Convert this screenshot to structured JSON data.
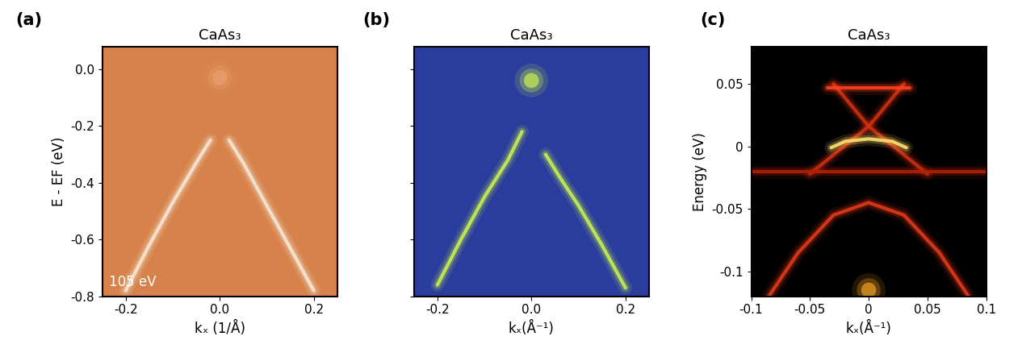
{
  "chart_data": [
    {
      "type": "line",
      "label": "(a)",
      "title": "CaAs₃",
      "annotation": "105 eV",
      "xlabel": "kₓ (1/Å)",
      "ylabel": "E - EF (eV)",
      "xlim": [
        -0.25,
        0.25
      ],
      "ylim": [
        -0.8,
        0.08
      ],
      "xticks": [
        -0.2,
        {
          "value": 0,
          "label": "0.0"
        },
        0.2
      ],
      "yticks": [
        -0.8,
        -0.6,
        -0.4,
        -0.2,
        {
          "value": 0,
          "label": "0.0"
        }
      ],
      "tick_labels": true,
      "color": "#d6824a",
      "series": [
        {
          "type": "line",
          "color": "#f7e6d4",
          "x": [
            -0.2,
            -0.15,
            -0.1,
            -0.05,
            -0.02
          ],
          "values": [
            -0.78,
            -0.62,
            -0.47,
            -0.33,
            -0.25
          ]
        },
        {
          "type": "line",
          "color": "#f7e6d4",
          "x": [
            0.02,
            0.05,
            0.1,
            0.15,
            0.2
          ],
          "values": [
            -0.25,
            -0.33,
            -0.48,
            -0.63,
            -0.78
          ]
        },
        {
          "type": "scatter",
          "color": "#e8a070",
          "x": [
            0.0
          ],
          "values": [
            -0.03
          ]
        }
      ]
    },
    {
      "type": "line",
      "label": "(b)",
      "title": "CaAs₃",
      "xlabel": "kₓ(Å⁻¹)",
      "xlim": [
        -0.25,
        0.25
      ],
      "ylim": [
        -0.8,
        0.08
      ],
      "xticks": [
        -0.2,
        {
          "value": 0,
          "label": "0.0"
        },
        0.2
      ],
      "yticks": [
        -0.8,
        -0.6,
        -0.4,
        -0.2,
        0
      ],
      "tick_labels": "x",
      "color": "#2a3d9c",
      "series": [
        {
          "type": "line",
          "color": "#c8ee50",
          "x": [
            -0.2,
            -0.15,
            -0.1,
            -0.05,
            -0.02
          ],
          "values": [
            -0.76,
            -0.6,
            -0.45,
            -0.32,
            -0.22
          ]
        },
        {
          "type": "line",
          "color": "#c8ee50",
          "x": [
            0.03,
            0.06,
            0.1,
            0.15,
            0.2
          ],
          "values": [
            -0.3,
            -0.38,
            -0.48,
            -0.62,
            -0.77
          ]
        },
        {
          "type": "scatter",
          "color": "#c8ee50",
          "x": [
            0.0
          ],
          "values": [
            -0.04
          ]
        }
      ]
    },
    {
      "type": "line",
      "label": "(c)",
      "title": "CaAs₃",
      "xlabel": "kₓ(Å⁻¹)",
      "ylabel": "Energy (eV)",
      "xlim": [
        -0.1,
        0.1
      ],
      "ylim": [
        -0.12,
        0.08
      ],
      "xticks": [
        -0.1,
        -0.05,
        0,
        0.05,
        0.1
      ],
      "yticks": [
        -0.1,
        -0.05,
        0,
        0.05
      ],
      "tick_labels": true,
      "color": "#000000",
      "series": [
        {
          "type": "line",
          "color": "#d03010",
          "x": [
            -0.03,
            0.0,
            0.05
          ],
          "values": [
            0.05,
            0.016,
            -0.022
          ]
        },
        {
          "type": "line",
          "color": "#d03010",
          "x": [
            0.03,
            0.0,
            -0.05
          ],
          "values": [
            0.05,
            0.016,
            -0.022
          ]
        },
        {
          "type": "line",
          "color": "#ff4020",
          "x": [
            -0.035,
            0.0,
            0.035
          ],
          "values": [
            0.047,
            0.047,
            0.047
          ]
        },
        {
          "type": "line",
          "color": "#ffe070",
          "x": [
            -0.032,
            -0.02,
            0.0,
            0.02,
            0.032
          ],
          "values": [
            -0.001,
            0.004,
            0.006,
            0.004,
            -0.001
          ]
        },
        {
          "type": "line",
          "color": "#b02008",
          "x": [
            -0.1,
            0.1
          ],
          "values": [
            -0.02,
            -0.02
          ]
        },
        {
          "type": "line",
          "color": "#e03818",
          "x": [
            -0.085,
            -0.06,
            -0.03,
            0.0,
            0.03,
            0.06,
            0.085
          ],
          "values": [
            -0.12,
            -0.085,
            -0.055,
            -0.045,
            -0.055,
            -0.085,
            -0.12
          ]
        },
        {
          "type": "scatter",
          "color": "#f0a020",
          "x": [
            0.0
          ],
          "values": [
            -0.115
          ]
        }
      ]
    }
  ]
}
